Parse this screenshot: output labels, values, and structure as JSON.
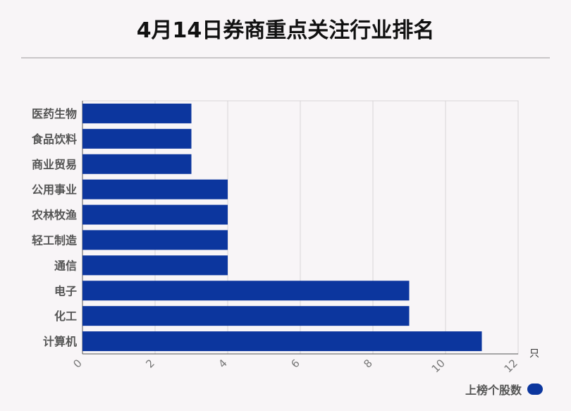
{
  "chart_data": {
    "type": "bar",
    "orientation": "horizontal",
    "title": "4月14日券商重点关注行业排名",
    "categories": [
      "医药生物",
      "食品饮料",
      "商业贸易",
      "公用事业",
      "农林牧渔",
      "轻工制造",
      "通信",
      "电子",
      "化工",
      "计算机"
    ],
    "series": [
      {
        "name": "上榜个股数",
        "values": [
          3,
          3,
          3,
          4,
          4,
          4,
          4,
          9,
          9,
          11
        ],
        "color": "#0c369e"
      }
    ],
    "xlim": [
      0,
      12
    ],
    "xticks": [
      "0",
      "2",
      "4",
      "6",
      "8",
      "10",
      "12"
    ],
    "x_unit": "只",
    "grid": true,
    "legend_position": "bottom-right"
  }
}
